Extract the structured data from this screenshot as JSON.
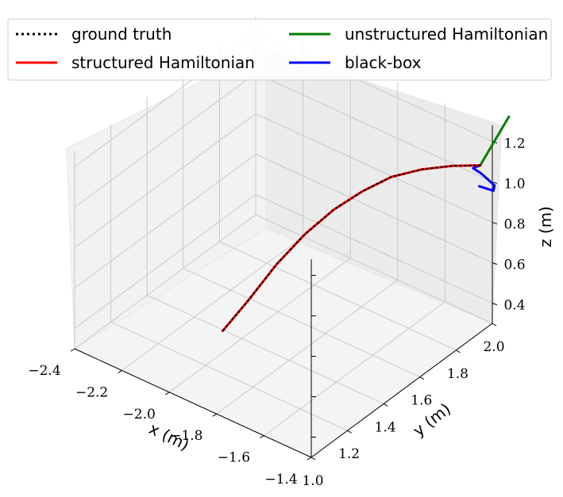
{
  "chart_data": {
    "type": "line",
    "projection": "3d",
    "xlabel": "x (m)",
    "ylabel": "y (m)",
    "zlabel": "z (m)",
    "xlim": [
      -1.4,
      -2.4
    ],
    "ylim": [
      1.0,
      2.0
    ],
    "zlim": [
      0.3,
      1.28
    ],
    "x_ticks": [
      "−1.4",
      "−1.6",
      "−1.8",
      "−2.0",
      "−2.2",
      "−2.4"
    ],
    "x_tick_values": [
      -1.4,
      -1.6,
      -1.8,
      -2.0,
      -2.2,
      -2.4
    ],
    "y_ticks": [
      "1.0",
      "1.2",
      "1.4",
      "1.6",
      "1.8",
      "2.0"
    ],
    "y_tick_values": [
      1.0,
      1.2,
      1.4,
      1.6,
      1.8,
      2.0
    ],
    "z_ticks": [
      "0.4",
      "0.6",
      "0.8",
      "1.0",
      "1.2"
    ],
    "z_tick_values": [
      0.4,
      0.6,
      0.8,
      1.0,
      1.2
    ],
    "grid": true,
    "legend_position": "top",
    "series": [
      {
        "name": "ground truth",
        "color": "#000000",
        "style": "dotted",
        "x": [
          -1.39,
          -1.44,
          -1.5,
          -1.56,
          -1.62,
          -1.68,
          -1.74,
          -1.8,
          -1.86,
          -1.92
        ],
        "y": [
          1.92,
          1.83,
          1.74,
          1.65,
          1.57,
          1.49,
          1.41,
          1.33,
          1.25,
          1.19
        ],
        "z": [
          1.14,
          1.17,
          1.18,
          1.17,
          1.12,
          1.05,
          0.95,
          0.82,
          0.66,
          0.52
        ]
      },
      {
        "name": "structured Hamiltonian",
        "color": "#ff0000",
        "style": "solid",
        "x": [
          -1.39,
          -1.44,
          -1.5,
          -1.56,
          -1.62,
          -1.68,
          -1.74,
          -1.8,
          -1.86,
          -1.92
        ],
        "y": [
          1.92,
          1.83,
          1.74,
          1.65,
          1.57,
          1.49,
          1.41,
          1.33,
          1.25,
          1.19
        ],
        "z": [
          1.14,
          1.17,
          1.18,
          1.17,
          1.12,
          1.05,
          0.95,
          0.82,
          0.66,
          0.52
        ]
      },
      {
        "name": "unstructured Hamiltonian",
        "color": "#008000",
        "style": "solid",
        "x": [
          -1.39,
          -1.33
        ],
        "y": [
          1.92,
          2.0
        ],
        "z": [
          1.14,
          1.36
        ]
      },
      {
        "name": "black-box",
        "color": "#0000ff",
        "style": "solid",
        "x": [
          -1.39,
          -1.42,
          -1.4,
          -1.36,
          -1.38,
          -1.44
        ],
        "y": [
          1.92,
          1.92,
          1.94,
          1.96,
          1.98,
          1.98
        ],
        "z": [
          1.14,
          1.11,
          1.08,
          1.03,
          0.98,
          0.97
        ]
      }
    ]
  }
}
